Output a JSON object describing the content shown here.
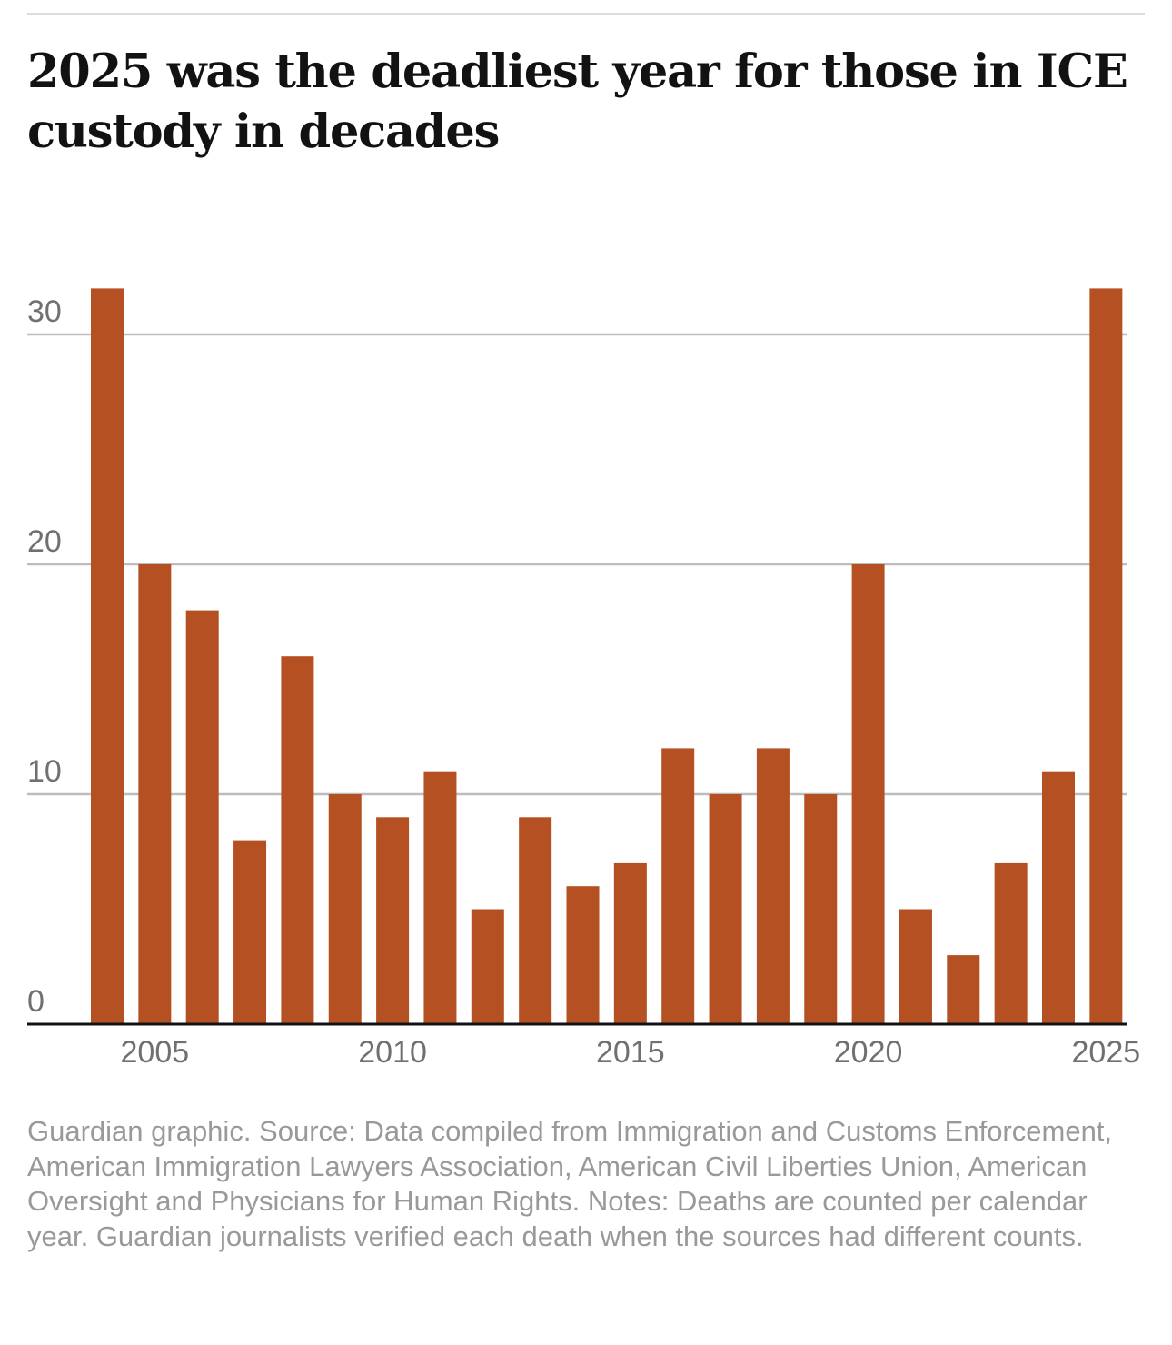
{
  "chart_data": {
    "type": "bar",
    "title": "2025 was the deadliest year for those in ICE custody in decades",
    "xlabel": "",
    "ylabel": "",
    "categories": [
      "2004",
      "2005",
      "2006",
      "2007",
      "2008",
      "2009",
      "2010",
      "2011",
      "2012",
      "2013",
      "2014",
      "2015",
      "2016",
      "2017",
      "2018",
      "2019",
      "2020",
      "2021",
      "2022",
      "2023",
      "2024",
      "2025"
    ],
    "values": [
      32,
      20,
      18,
      8,
      16,
      10,
      9,
      11,
      5,
      9,
      6,
      7,
      12,
      10,
      12,
      10,
      20,
      5,
      3,
      7,
      11,
      32
    ],
    "ylim": [
      0,
      32
    ],
    "yticks": [
      0,
      10,
      20,
      30
    ],
    "ytick_labels": [
      "0",
      "10",
      "20",
      "30"
    ],
    "xticks": [
      "2005",
      "2010",
      "2015",
      "2020",
      "2025"
    ],
    "grid": true,
    "legend": "none",
    "bar_color": "#b55022",
    "source": "Guardian graphic. Source: Data compiled from Immigration and Customs Enforcement, American Immigration Lawyers Association, American Civil Liberties Union, American Oversight and Physicians for Human Rights. Notes: Deaths are counted per calendar year. Guardian journalists verified each death when the sources had different counts."
  }
}
